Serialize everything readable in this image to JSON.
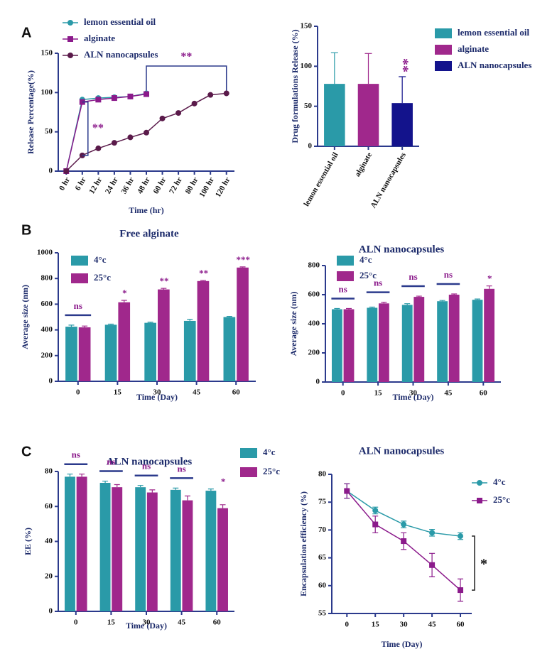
{
  "chart_data": [
    {
      "type": "line",
      "panel": "A",
      "x_label": "Time (hr)",
      "y_label": "Release Percentage(%)",
      "categories": [
        "0 hr",
        "6 hr",
        "12 hr",
        "24 hr",
        "36 hr",
        "48 hr",
        "60 hr",
        "72 hr",
        "80 hr",
        "100 hr",
        "120 hr"
      ],
      "series": [
        {
          "name": "lemon essential oil",
          "color": "#2a9aa8",
          "marker": "circle",
          "values": [
            0,
            91,
            93,
            94,
            95,
            99,
            null,
            null,
            null,
            null,
            null
          ]
        },
        {
          "name": "alginate",
          "color": "#8b1a8b",
          "marker": "square",
          "values": [
            0,
            88,
            91,
            93,
            95,
            98,
            null,
            null,
            null,
            null,
            null
          ]
        },
        {
          "name": "ALN nanocapsules",
          "color": "#5a1a4a",
          "marker": "circle",
          "values": [
            0,
            20,
            29,
            36,
            43,
            49,
            67,
            74,
            86,
            97,
            99
          ]
        }
      ],
      "ylim": [
        0,
        150
      ],
      "yticks": [
        0,
        50,
        100,
        150
      ],
      "annotations": [
        "**",
        "**"
      ]
    },
    {
      "type": "bar",
      "y_label": "Drug formulations Release (%)",
      "categories": [
        "lemon essential oil",
        "alginate",
        "ALN nanocapsules"
      ],
      "values": [
        78,
        78,
        54
      ],
      "errors": [
        39,
        38,
        33
      ],
      "colors": [
        "#2a9aa8",
        "#a0288c",
        "#13138c"
      ],
      "ylim": [
        0,
        150
      ],
      "yticks": [
        0,
        50,
        100,
        150
      ],
      "annotations": [
        "**"
      ]
    },
    {
      "type": "bar",
      "panel": "B",
      "title": "Free alginate",
      "x_label": "Time (Day)",
      "y_label": "Average size (nm)",
      "categories": [
        "0",
        "15",
        "30",
        "45",
        "60"
      ],
      "series": [
        {
          "name": "4°c",
          "color": "#2a9aa8",
          "values": [
            425,
            440,
            455,
            470,
            500
          ],
          "errors": [
            12,
            5,
            5,
            12,
            5
          ]
        },
        {
          "name": "25°c",
          "color": "#a0288c",
          "values": [
            420,
            615,
            715,
            780,
            885
          ],
          "errors": [
            10,
            15,
            8,
            5,
            5
          ]
        }
      ],
      "ylim": [
        0,
        1000
      ],
      "yticks": [
        0,
        200,
        400,
        600,
        800,
        1000
      ],
      "annotations": [
        "ns",
        "*",
        "**",
        "**",
        "***"
      ]
    },
    {
      "type": "bar",
      "title": "ALN nanocapsules",
      "x_label": "Time (Day)",
      "y_label": "Average size (nm)",
      "categories": [
        "0",
        "15",
        "30",
        "45",
        "60"
      ],
      "series": [
        {
          "name": "4°c",
          "color": "#2a9aa8",
          "values": [
            500,
            510,
            530,
            555,
            565
          ],
          "errors": [
            5,
            5,
            8,
            5,
            5
          ]
        },
        {
          "name": "25°c",
          "color": "#a0288c",
          "values": [
            500,
            540,
            585,
            600,
            640
          ],
          "errors": [
            5,
            8,
            5,
            5,
            20
          ]
        }
      ],
      "ylim": [
        0,
        800
      ],
      "yticks": [
        0,
        200,
        400,
        600,
        800
      ],
      "annotations": [
        "ns",
        "ns",
        "ns",
        "ns",
        "*"
      ]
    },
    {
      "type": "bar",
      "panel": "C",
      "title": "ALN nanocapsules",
      "x_label": "Time (Day)",
      "y_label": "EE (%)",
      "categories": [
        "0",
        "15",
        "30",
        "45",
        "60"
      ],
      "series": [
        {
          "name": "4°c",
          "color": "#2a9aa8",
          "values": [
            77,
            73.5,
            71,
            69.5,
            69
          ],
          "errors": [
            1.5,
            1,
            1,
            1,
            1
          ]
        },
        {
          "name": "25°c",
          "color": "#a0288c",
          "values": [
            77,
            71,
            68,
            63.5,
            59
          ],
          "errors": [
            1.5,
            1.5,
            1.5,
            2.5,
            2
          ]
        }
      ],
      "ylim": [
        0,
        80
      ],
      "yticks": [
        0,
        20,
        40,
        60,
        80
      ],
      "annotations": [
        "ns",
        "ns",
        "ns",
        "ns",
        "*"
      ]
    },
    {
      "type": "line",
      "title": "ALN nanocapsules",
      "x_label": "Time (Day)",
      "y_label": "Encapsulation efficiency (%)",
      "x": [
        0,
        15,
        30,
        45,
        60
      ],
      "xlim": [
        -8,
        66
      ],
      "xticks": [
        0,
        15,
        30,
        45,
        60
      ],
      "series": [
        {
          "name": "4°c",
          "color": "#2a9aa8",
          "marker": "circle",
          "values": [
            77,
            73.5,
            71,
            69.5,
            68.9
          ],
          "errors": [
            1.3,
            0.6,
            0.6,
            0.6,
            0.6
          ]
        },
        {
          "name": "25°c",
          "color": "#8b1a8b",
          "marker": "square",
          "values": [
            77,
            71,
            68,
            63.7,
            59.2
          ],
          "errors": [
            1.3,
            1.5,
            1.5,
            2.1,
            2
          ]
        }
      ],
      "ylim": [
        55,
        80
      ],
      "yticks": [
        55,
        60,
        65,
        70,
        75,
        80
      ],
      "annotations": [
        "*"
      ]
    }
  ]
}
